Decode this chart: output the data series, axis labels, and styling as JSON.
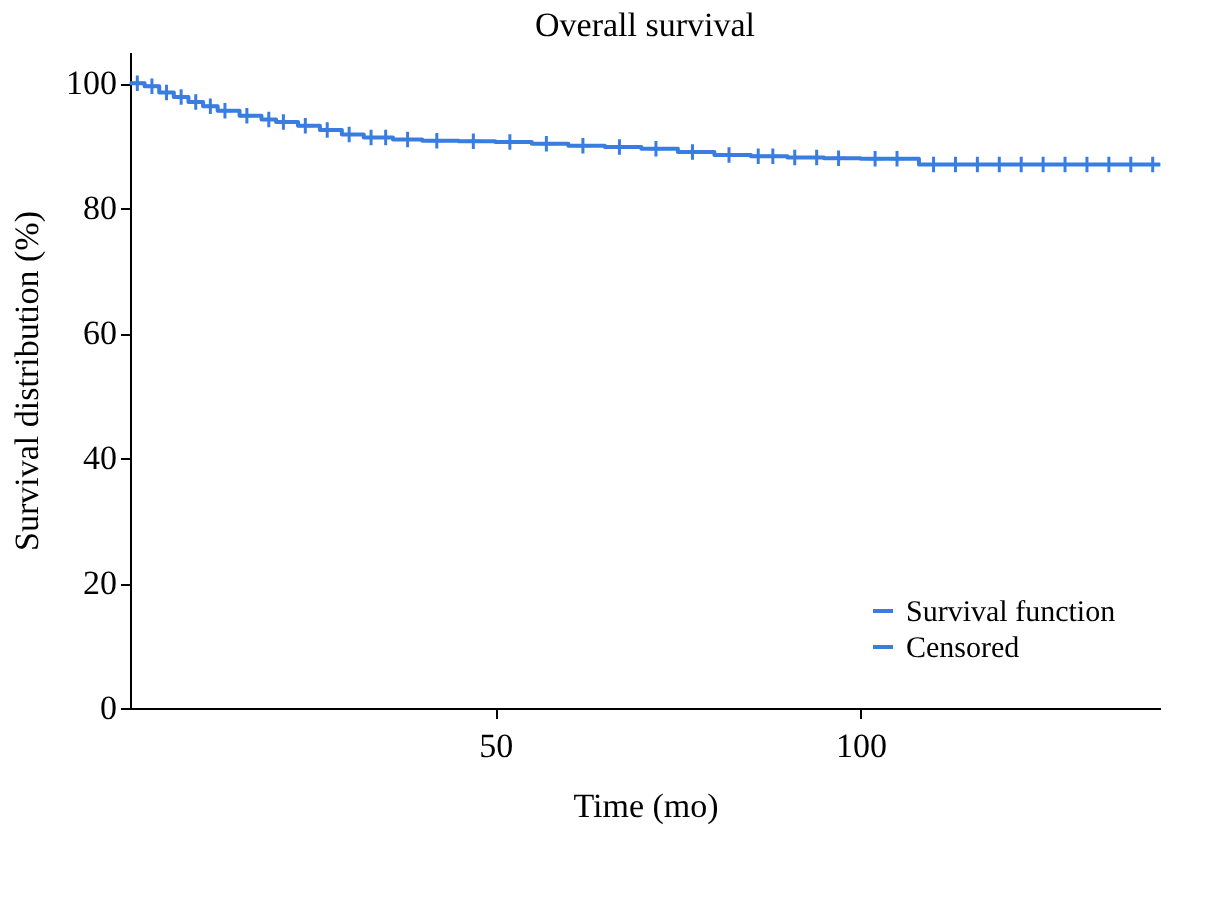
{
  "chart_data": {
    "type": "step",
    "title": "Overall survival",
    "xlabel": "Time (mo)",
    "ylabel": "Survival distribution (%)",
    "xlim": [
      0,
      141
    ],
    "ylim": [
      0,
      105
    ],
    "xticks": [
      50,
      100
    ],
    "yticks": [
      0,
      20,
      40,
      60,
      80,
      100
    ],
    "grid": false,
    "legend": "bottom right",
    "series": [
      {
        "name": "Survival function",
        "type": "step",
        "color": "#3a7de0",
        "x": [
          0,
          2,
          4,
          6,
          8,
          10,
          12,
          15,
          18,
          20,
          23,
          26,
          29,
          32,
          36,
          40,
          45,
          50,
          55,
          60,
          65,
          70,
          75,
          80,
          85,
          90,
          95,
          100,
          108,
          141
        ],
        "values": [
          100,
          99.5,
          98.5,
          97.8,
          97,
          96.3,
          95.6,
          94.8,
          94.2,
          93.8,
          93.2,
          92.5,
          91.8,
          91.3,
          91,
          90.8,
          90.7,
          90.6,
          90.3,
          90,
          89.8,
          89.5,
          89,
          88.5,
          88.3,
          88.1,
          88,
          87.9,
          87,
          87
        ]
      },
      {
        "name": "Censored",
        "type": "scatter",
        "marker": "cross",
        "color": "#3a7de0",
        "x": [
          1,
          3,
          5,
          7,
          9,
          11,
          13,
          16,
          19,
          21,
          24,
          27,
          30,
          33,
          35,
          38,
          42,
          47,
          52,
          57,
          62,
          67,
          72,
          77,
          82,
          86,
          88,
          91,
          94,
          97,
          102,
          105,
          110,
          113,
          116,
          119,
          122,
          125,
          128,
          131,
          134,
          137,
          140
        ],
        "values": [
          100,
          99.5,
          98.5,
          97.8,
          97,
          96.3,
          95.6,
          94.8,
          94.2,
          93.8,
          93.2,
          92.5,
          91.8,
          91.3,
          91.3,
          91,
          90.8,
          90.7,
          90.6,
          90.3,
          90,
          89.8,
          89.5,
          89,
          88.5,
          88.3,
          88.3,
          88.1,
          88.1,
          88,
          87.9,
          87.9,
          87,
          87,
          87,
          87,
          87,
          87,
          87,
          87,
          87,
          87,
          87
        ]
      }
    ]
  }
}
